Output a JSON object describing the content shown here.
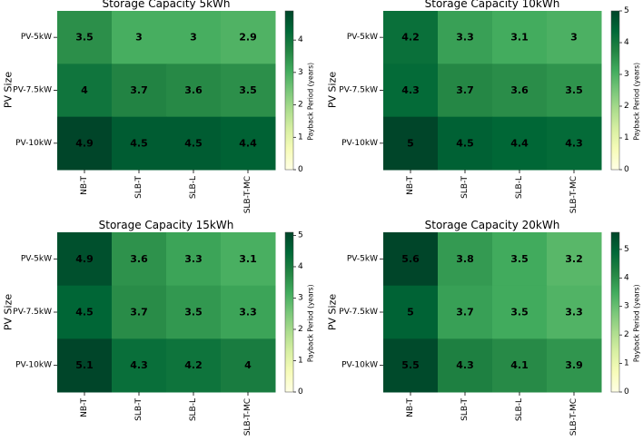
{
  "colormap": {
    "name": "YlGn",
    "stops": [
      "#ffffe5",
      "#f7fcb9",
      "#d9f0a3",
      "#addd8e",
      "#78c679",
      "#41ab5d",
      "#238443",
      "#006837",
      "#004529"
    ]
  },
  "chart_data": [
    {
      "type": "heatmap",
      "title": "Storage Capacity 5kWh",
      "ylabel": "PV Size",
      "rows": [
        "PV-5kW",
        "PV-7.5kW",
        "PV-10kW"
      ],
      "columns": [
        "NB-T",
        "SLB-T",
        "SLB-L",
        "SLB-T-MC"
      ],
      "values": [
        [
          3.5,
          3,
          3,
          2.9
        ],
        [
          4,
          3.7,
          3.6,
          3.5
        ],
        [
          4.9,
          4.5,
          4.5,
          4.4
        ]
      ],
      "value_labels": [
        [
          "3.5",
          "3",
          "3",
          "2.9"
        ],
        [
          "4",
          "3.7",
          "3.6",
          "3.5"
        ],
        [
          "4.9",
          "4.5",
          "4.5",
          "4.4"
        ]
      ],
      "colorbar": {
        "label": "Payback Period (years)",
        "range": [
          0,
          4.9
        ],
        "ticks": [
          "0",
          "1",
          "2",
          "3",
          "4"
        ]
      }
    },
    {
      "type": "heatmap",
      "title": "Storage Capacity 10kWh",
      "ylabel": "PV Size",
      "rows": [
        "PV-5kW",
        "PV-7.5kW",
        "PV-10kW"
      ],
      "columns": [
        "NB-T",
        "SLB-T",
        "SLB-L",
        "SLB-T-MC"
      ],
      "values": [
        [
          4.2,
          3.3,
          3.1,
          3
        ],
        [
          4.3,
          3.7,
          3.6,
          3.5
        ],
        [
          5,
          4.5,
          4.4,
          4.3
        ]
      ],
      "value_labels": [
        [
          "4.2",
          "3.3",
          "3.1",
          "3"
        ],
        [
          "4.3",
          "3.7",
          "3.6",
          "3.5"
        ],
        [
          "5",
          "4.5",
          "4.4",
          "4.3"
        ]
      ],
      "colorbar": {
        "label": "Payback Period (years)",
        "range": [
          0,
          5
        ],
        "ticks": [
          "0",
          "1",
          "2",
          "3",
          "4",
          "5"
        ]
      }
    },
    {
      "type": "heatmap",
      "title": "Storage Capacity 15kWh",
      "ylabel": "PV Size",
      "rows": [
        "PV-5kW",
        "PV-7.5kW",
        "PV-10kW"
      ],
      "columns": [
        "NB-T",
        "SLB-T",
        "SLB-L",
        "SLB-T-MC"
      ],
      "values": [
        [
          4.9,
          3.6,
          3.3,
          3.1
        ],
        [
          4.5,
          3.7,
          3.5,
          3.3
        ],
        [
          5.1,
          4.3,
          4.2,
          4
        ]
      ],
      "value_labels": [
        [
          "4.9",
          "3.6",
          "3.3",
          "3.1"
        ],
        [
          "4.5",
          "3.7",
          "3.5",
          "3.3"
        ],
        [
          "5.1",
          "4.3",
          "4.2",
          "4"
        ]
      ],
      "colorbar": {
        "label": "Payback Period (years)",
        "range": [
          0,
          5.1
        ],
        "ticks": [
          "0",
          "1",
          "2",
          "3",
          "4",
          "5"
        ]
      }
    },
    {
      "type": "heatmap",
      "title": "Storage Capacity 20kWh",
      "ylabel": "PV Size",
      "rows": [
        "PV-5kW",
        "PV-7.5kW",
        "PV-10kW"
      ],
      "columns": [
        "NB-T",
        "SLB-T",
        "SLB-L",
        "SLB-T-MC"
      ],
      "values": [
        [
          5.6,
          3.8,
          3.5,
          3.2
        ],
        [
          5,
          3.7,
          3.5,
          3.3
        ],
        [
          5.5,
          4.3,
          4.1,
          3.9
        ]
      ],
      "value_labels": [
        [
          "5.6",
          "3.8",
          "3.5",
          "3.2"
        ],
        [
          "5",
          "3.7",
          "3.5",
          "3.3"
        ],
        [
          "5.5",
          "4.3",
          "4.1",
          "3.9"
        ]
      ],
      "colorbar": {
        "label": "Payback Period (years)",
        "range": [
          0,
          5.6
        ],
        "ticks": [
          "0",
          "1",
          "2",
          "3",
          "4",
          "5"
        ]
      }
    }
  ]
}
